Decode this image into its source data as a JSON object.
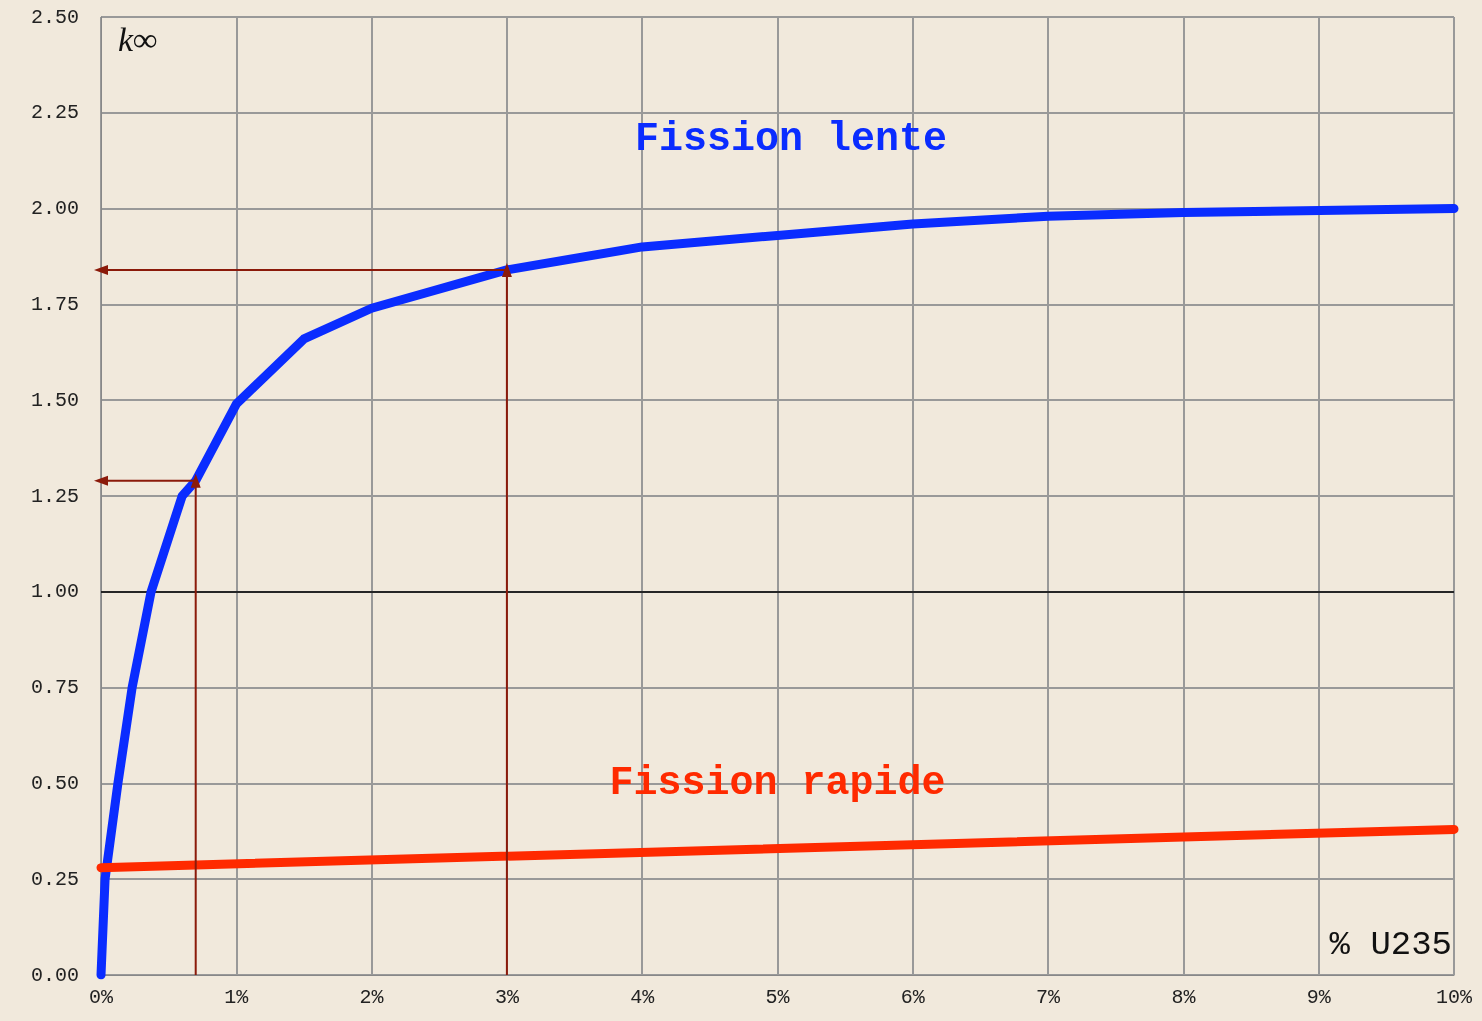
{
  "chart_data": {
    "type": "line",
    "ylabel": "k∞",
    "xlabel": "% U235",
    "xlim": [
      0,
      10
    ],
    "ylim": [
      0,
      2.5
    ],
    "xticks": [
      {
        "value": 0,
        "label": "0%"
      },
      {
        "value": 1,
        "label": "1%"
      },
      {
        "value": 2,
        "label": "2%"
      },
      {
        "value": 3,
        "label": "3%"
      },
      {
        "value": 4,
        "label": "4%"
      },
      {
        "value": 5,
        "label": "5%"
      },
      {
        "value": 6,
        "label": "6%"
      },
      {
        "value": 7,
        "label": "7%"
      },
      {
        "value": 8,
        "label": "8%"
      },
      {
        "value": 9,
        "label": "9%"
      },
      {
        "value": 10,
        "label": "10%"
      }
    ],
    "yticks": [
      {
        "value": 0,
        "label": "0.00"
      },
      {
        "value": 0.25,
        "label": "0.25"
      },
      {
        "value": 0.5,
        "label": "0.50"
      },
      {
        "value": 0.75,
        "label": "0.75"
      },
      {
        "value": 1,
        "label": "1.00"
      },
      {
        "value": 1.25,
        "label": "1.25"
      },
      {
        "value": 1.5,
        "label": "1.50"
      },
      {
        "value": 1.75,
        "label": "1.75"
      },
      {
        "value": 2,
        "label": "2.00"
      },
      {
        "value": 2.25,
        "label": "2.25"
      },
      {
        "value": 2.5,
        "label": "2.50"
      }
    ],
    "grid": true,
    "legend": false,
    "marker": "none",
    "line_style": "solid",
    "series": [
      {
        "name": "Fission lente",
        "color": "#0a2cff",
        "x": [
          0,
          0.03,
          0.125,
          0.23,
          0.37,
          0.6,
          0.7,
          1,
          1.5,
          2,
          3,
          4,
          5,
          6,
          7,
          8,
          10
        ],
        "values": [
          0,
          0.25,
          0.5,
          0.75,
          1,
          1.25,
          1.29,
          1.49,
          1.66,
          1.74,
          1.84,
          1.9,
          1.93,
          1.96,
          1.98,
          1.99,
          2.0
        ]
      },
      {
        "name": "Fission rapide",
        "color": "#ff2a00",
        "x": [
          0,
          10
        ],
        "values": [
          0.28,
          0.38
        ]
      },
      {
        "type": "line",
        "marker": "triangle",
        "color": "#8b1a0a",
        "x": [
          0.7,
          0.7,
          0
        ],
        "values": [
          0,
          1.29,
          1.29
        ]
      },
      {
        "type": "line",
        "marker": "triangle",
        "color": "#8b1a0a",
        "x": [
          3,
          3,
          0
        ],
        "values": [
          0,
          1.84,
          1.84
        ]
      }
    ],
    "ref_lines": [
      {
        "axis": "y",
        "value": 1,
        "color": "#000000"
      }
    ]
  }
}
